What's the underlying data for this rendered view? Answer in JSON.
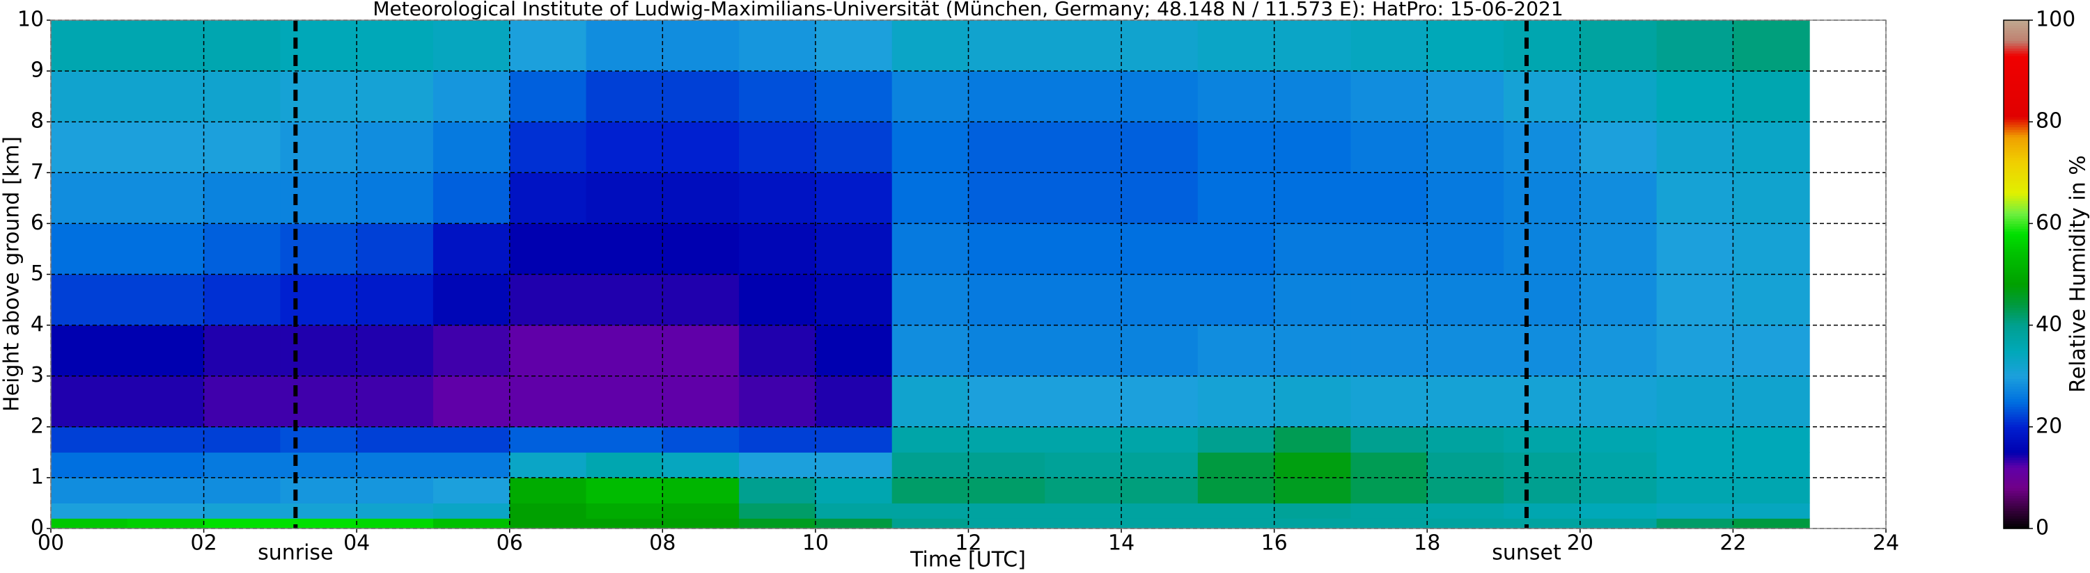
{
  "chart_data": {
    "type": "heatmap",
    "title": "Meteorological Institute of Ludwig-Maximilians-Universität (München, Germany; 48.148 N / 11.573 E):    HatPro: 15-06-2021",
    "x_label": "Time [UTC]",
    "y_label": "Height above ground [km]",
    "colorbar_label": "Relative Humidity in %",
    "xlim": [
      0,
      24
    ],
    "ylim": [
      0,
      10
    ],
    "xticks": [
      {
        "value": 0,
        "label": "00"
      },
      {
        "value": 2,
        "label": "02"
      },
      {
        "value": 4,
        "label": "04"
      },
      {
        "value": 6,
        "label": "06"
      },
      {
        "value": 8,
        "label": "08"
      },
      10,
      12,
      14,
      16,
      18,
      20,
      22,
      24
    ],
    "yticks": [
      0,
      1,
      2,
      3,
      4,
      5,
      6,
      7,
      8,
      9,
      10
    ],
    "grid": true,
    "clim": [
      0,
      100
    ],
    "cticks": [
      0,
      20,
      40,
      60,
      80,
      100
    ],
    "colorscale": [
      [
        0,
        "#000000"
      ],
      [
        4,
        "#3a0040"
      ],
      [
        8,
        "#700088"
      ],
      [
        12,
        "#6000a8"
      ],
      [
        15,
        "#0000b0"
      ],
      [
        20,
        "#0020d0"
      ],
      [
        25,
        "#0070e0"
      ],
      [
        30,
        "#1ca0dc"
      ],
      [
        35,
        "#00a8b8"
      ],
      [
        40,
        "#00a090"
      ],
      [
        44,
        "#009a40"
      ],
      [
        48,
        "#00a000"
      ],
      [
        54,
        "#00c000"
      ],
      [
        58,
        "#00e000"
      ],
      [
        62,
        "#70f040"
      ],
      [
        66,
        "#e0f000"
      ],
      [
        72,
        "#f0d000"
      ],
      [
        77,
        "#f0a000"
      ],
      [
        81,
        "#e00000"
      ],
      [
        93,
        "#f00000"
      ],
      [
        96,
        "#c08070"
      ],
      [
        100,
        "#c0a890"
      ]
    ],
    "x_bins": [
      0,
      1,
      2,
      3,
      4,
      5,
      6,
      7,
      8,
      9,
      10,
      11,
      12,
      13,
      14,
      15,
      16,
      17,
      18,
      19,
      20,
      21,
      22,
      23
    ],
    "y_bins": [
      0,
      0.2,
      0.5,
      1,
      1.5,
      2,
      3,
      4,
      5,
      6,
      7,
      8,
      9,
      10
    ],
    "z": [
      [
        55,
        56,
        58,
        58,
        57,
        54,
        48,
        48,
        48,
        46,
        44,
        40,
        38,
        38,
        38,
        38,
        38,
        38,
        38,
        38,
        38,
        42,
        44
      ],
      [
        30,
        30,
        31,
        31,
        32,
        33,
        48,
        50,
        49,
        42,
        38,
        38,
        38,
        38,
        38,
        38,
        39,
        38,
        37,
        36,
        35,
        34,
        34
      ],
      [
        28,
        28,
        28,
        29,
        29,
        30,
        50,
        53,
        52,
        40,
        36,
        42,
        42,
        41,
        41,
        44,
        46,
        43,
        41,
        40,
        38,
        36,
        36
      ],
      [
        25,
        25,
        26,
        26,
        26,
        26,
        33,
        36,
        34,
        30,
        30,
        40,
        40,
        39,
        39,
        44,
        47,
        43,
        40,
        39,
        37,
        35,
        35
      ],
      [
        22,
        22,
        22,
        23,
        22,
        22,
        24,
        24,
        23,
        22,
        22,
        37,
        37,
        37,
        37,
        40,
        43,
        40,
        38,
        37,
        36,
        35,
        35
      ],
      [
        14,
        14,
        13,
        13,
        13,
        12,
        12,
        12,
        12,
        13,
        14,
        32,
        30,
        30,
        30,
        31,
        32,
        31,
        31,
        31,
        31,
        32,
        32
      ],
      [
        15,
        15,
        14,
        14,
        14,
        13,
        12,
        12,
        12,
        14,
        15,
        28,
        27,
        27,
        27,
        28,
        28,
        28,
        28,
        28,
        29,
        30,
        30
      ],
      [
        22,
        22,
        21,
        20,
        19,
        16,
        14,
        14,
        14,
        15,
        16,
        27,
        26,
        26,
        26,
        26,
        27,
        27,
        27,
        27,
        28,
        30,
        31
      ],
      [
        25,
        25,
        24,
        23,
        22,
        18,
        15,
        15,
        15,
        16,
        17,
        26,
        25,
        25,
        25,
        25,
        26,
        26,
        26,
        27,
        28,
        30,
        31
      ],
      [
        28,
        28,
        27,
        27,
        26,
        24,
        18,
        17,
        17,
        18,
        19,
        25,
        24,
        24,
        24,
        25,
        25,
        25,
        26,
        27,
        28,
        31,
        32
      ],
      [
        30,
        30,
        30,
        29,
        28,
        26,
        21,
        20,
        20,
        21,
        22,
        25,
        24,
        24,
        24,
        25,
        25,
        26,
        27,
        28,
        30,
        32,
        33
      ],
      [
        32,
        32,
        32,
        31,
        31,
        29,
        24,
        22,
        22,
        23,
        24,
        27,
        26,
        26,
        26,
        27,
        27,
        28,
        29,
        31,
        33,
        35,
        36
      ],
      [
        36,
        36,
        36,
        35,
        35,
        34,
        30,
        28,
        28,
        29,
        30,
        33,
        32,
        32,
        32,
        33,
        33,
        34,
        35,
        36,
        38,
        40,
        41
      ]
    ],
    "annotations": [
      {
        "label": "sunrise",
        "x": 3.2
      },
      {
        "label": "sunset",
        "x": 19.3
      }
    ]
  }
}
